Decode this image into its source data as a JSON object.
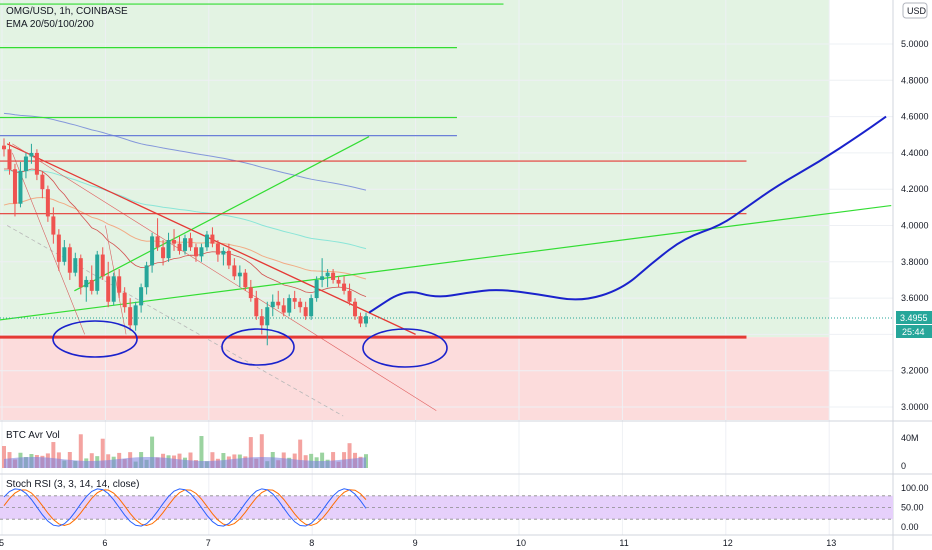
{
  "header": {
    "symbol": "OMG/USD, 1h, COINBASE",
    "indicator": "EMA 20/50/100/200",
    "currency_button": "USD"
  },
  "price_tag": {
    "value": "3.4955",
    "countdown": "25:44"
  },
  "colors": {
    "bull": "#26a69a",
    "bear": "#ef5350",
    "support": "#e53935",
    "green_line": "#33dd33",
    "projection": "#1a22cc",
    "zone_green": "#e3f3e3",
    "zone_red": "#fcdcdc",
    "ema_blue": "#6b7fd8",
    "ema_cyan": "#7fe3d6",
    "stoch_k": "#2962ff",
    "stoch_d": "#ff6d00",
    "stoch_band": "#e6d0fb"
  },
  "chart_data": {
    "type": "candlestick",
    "x_axis": {
      "ticks": [
        "5",
        "6",
        "7",
        "8",
        "9",
        "10",
        "11",
        "12",
        "13"
      ]
    },
    "y_axis": {
      "ticks": [
        "3.0000",
        "3.2000",
        "3.4000",
        "3.6000",
        "3.8000",
        "4.0000",
        "4.2000",
        "4.4000",
        "4.6000",
        "4.8000",
        "5.0000"
      ],
      "range": [
        2.93,
        5.22
      ]
    },
    "candles": [
      [
        4.44,
        4.48,
        4.38,
        4.42
      ],
      [
        4.42,
        4.46,
        4.28,
        4.31
      ],
      [
        4.31,
        4.34,
        4.05,
        4.12
      ],
      [
        4.12,
        4.35,
        4.1,
        4.3
      ],
      [
        4.3,
        4.4,
        4.26,
        4.38
      ],
      [
        4.38,
        4.45,
        4.34,
        4.4
      ],
      [
        4.4,
        4.42,
        4.25,
        4.28
      ],
      [
        4.28,
        4.3,
        4.15,
        4.2
      ],
      [
        4.2,
        4.22,
        4.02,
        4.05
      ],
      [
        4.05,
        4.1,
        3.9,
        3.95
      ],
      [
        3.95,
        3.98,
        3.75,
        3.8
      ],
      [
        3.8,
        3.92,
        3.78,
        3.88
      ],
      [
        3.88,
        3.9,
        3.7,
        3.74
      ],
      [
        3.74,
        3.85,
        3.72,
        3.82
      ],
      [
        3.82,
        3.84,
        3.62,
        3.66
      ],
      [
        3.66,
        3.72,
        3.58,
        3.7
      ],
      [
        3.7,
        3.78,
        3.62,
        3.64
      ],
      [
        3.64,
        3.86,
        3.62,
        3.84
      ],
      [
        3.84,
        3.88,
        3.7,
        3.72
      ],
      [
        3.72,
        3.8,
        3.55,
        3.58
      ],
      [
        3.58,
        3.74,
        3.56,
        3.72
      ],
      [
        3.72,
        3.76,
        3.6,
        3.63
      ],
      [
        3.63,
        3.66,
        3.52,
        3.55
      ],
      [
        3.55,
        3.6,
        3.42,
        3.45
      ],
      [
        3.45,
        3.58,
        3.42,
        3.56
      ],
      [
        3.56,
        3.68,
        3.52,
        3.66
      ],
      [
        3.66,
        3.8,
        3.62,
        3.78
      ],
      [
        3.78,
        3.96,
        3.74,
        3.94
      ],
      [
        3.94,
        4.04,
        3.86,
        3.88
      ],
      [
        3.88,
        3.92,
        3.78,
        3.82
      ],
      [
        3.82,
        3.96,
        3.8,
        3.92
      ],
      [
        3.92,
        3.98,
        3.86,
        3.9
      ],
      [
        3.9,
        3.94,
        3.84,
        3.86
      ],
      [
        3.86,
        3.95,
        3.84,
        3.93
      ],
      [
        3.93,
        3.96,
        3.86,
        3.88
      ],
      [
        3.88,
        3.9,
        3.8,
        3.83
      ],
      [
        3.83,
        3.9,
        3.8,
        3.88
      ],
      [
        3.88,
        3.97,
        3.86,
        3.95
      ],
      [
        3.95,
        3.99,
        3.88,
        3.9
      ],
      [
        3.9,
        3.92,
        3.8,
        3.84
      ],
      [
        3.84,
        3.88,
        3.78,
        3.86
      ],
      [
        3.86,
        3.9,
        3.76,
        3.78
      ],
      [
        3.78,
        3.82,
        3.7,
        3.72
      ],
      [
        3.72,
        3.78,
        3.66,
        3.74
      ],
      [
        3.74,
        3.76,
        3.64,
        3.66
      ],
      [
        3.66,
        3.7,
        3.58,
        3.6
      ],
      [
        3.6,
        3.64,
        3.48,
        3.5
      ],
      [
        3.5,
        3.54,
        3.4,
        3.45
      ],
      [
        3.45,
        3.58,
        3.34,
        3.55
      ],
      [
        3.55,
        3.62,
        3.5,
        3.58
      ],
      [
        3.58,
        3.64,
        3.54,
        3.56
      ],
      [
        3.56,
        3.6,
        3.5,
        3.52
      ],
      [
        3.52,
        3.62,
        3.5,
        3.6
      ],
      [
        3.6,
        3.64,
        3.54,
        3.58
      ],
      [
        3.58,
        3.6,
        3.52,
        3.55
      ],
      [
        3.55,
        3.58,
        3.48,
        3.5
      ],
      [
        3.5,
        3.62,
        3.48,
        3.6
      ],
      [
        3.6,
        3.72,
        3.58,
        3.7
      ],
      [
        3.7,
        3.82,
        3.66,
        3.72
      ],
      [
        3.72,
        3.76,
        3.66,
        3.74
      ],
      [
        3.74,
        3.76,
        3.68,
        3.7
      ],
      [
        3.7,
        3.72,
        3.66,
        3.68
      ],
      [
        3.68,
        3.72,
        3.62,
        3.64
      ],
      [
        3.64,
        3.68,
        3.56,
        3.58
      ],
      [
        3.58,
        3.6,
        3.48,
        3.5
      ],
      [
        3.5,
        3.52,
        3.44,
        3.46
      ],
      [
        3.46,
        3.52,
        3.44,
        3.5
      ]
    ],
    "horizontal_levels": [
      {
        "price": 5.22,
        "color": "green",
        "x_end": 9.85
      },
      {
        "price": 4.98,
        "color": "green",
        "x_end": 9.4
      },
      {
        "price": 4.595,
        "color": "green",
        "x_end": 9.4
      },
      {
        "price": 4.495,
        "color": "blue",
        "x_end": 9.4
      },
      {
        "price": 4.355,
        "color": "red",
        "x_end": 12.2
      },
      {
        "price": 4.065,
        "color": "red",
        "x_end": 12.2
      },
      {
        "price": 3.385,
        "color": "red",
        "x_end": 12.2
      }
    ],
    "zones": [
      {
        "name": "green",
        "from": 3.385,
        "to": 5.3,
        "x_end": 13.0
      },
      {
        "name": "red",
        "from": 2.9,
        "to": 3.385,
        "x_end": 13.0
      }
    ],
    "projection_path": [
      [
        8.55,
        3.52
      ],
      [
        8.9,
        3.65
      ],
      [
        9.2,
        3.6
      ],
      [
        9.5,
        3.63
      ],
      [
        9.8,
        3.65
      ],
      [
        10.2,
        3.62
      ],
      [
        10.6,
        3.58
      ],
      [
        11.0,
        3.65
      ],
      [
        11.3,
        3.8
      ],
      [
        11.6,
        3.93
      ],
      [
        11.95,
        4.0
      ],
      [
        12.2,
        4.1
      ],
      [
        12.5,
        4.22
      ],
      [
        12.9,
        4.35
      ],
      [
        13.3,
        4.5
      ],
      [
        13.55,
        4.6
      ]
    ],
    "volume": {
      "label": "BTC Avr Vol",
      "ticks": [
        "40M",
        "0"
      ]
    },
    "stoch_rsi": {
      "label": "Stoch RSI (3, 3, 14, 14, close)",
      "ticks": [
        "100.00",
        "50.00",
        "0.00"
      ],
      "bands": [
        20,
        80
      ]
    }
  }
}
